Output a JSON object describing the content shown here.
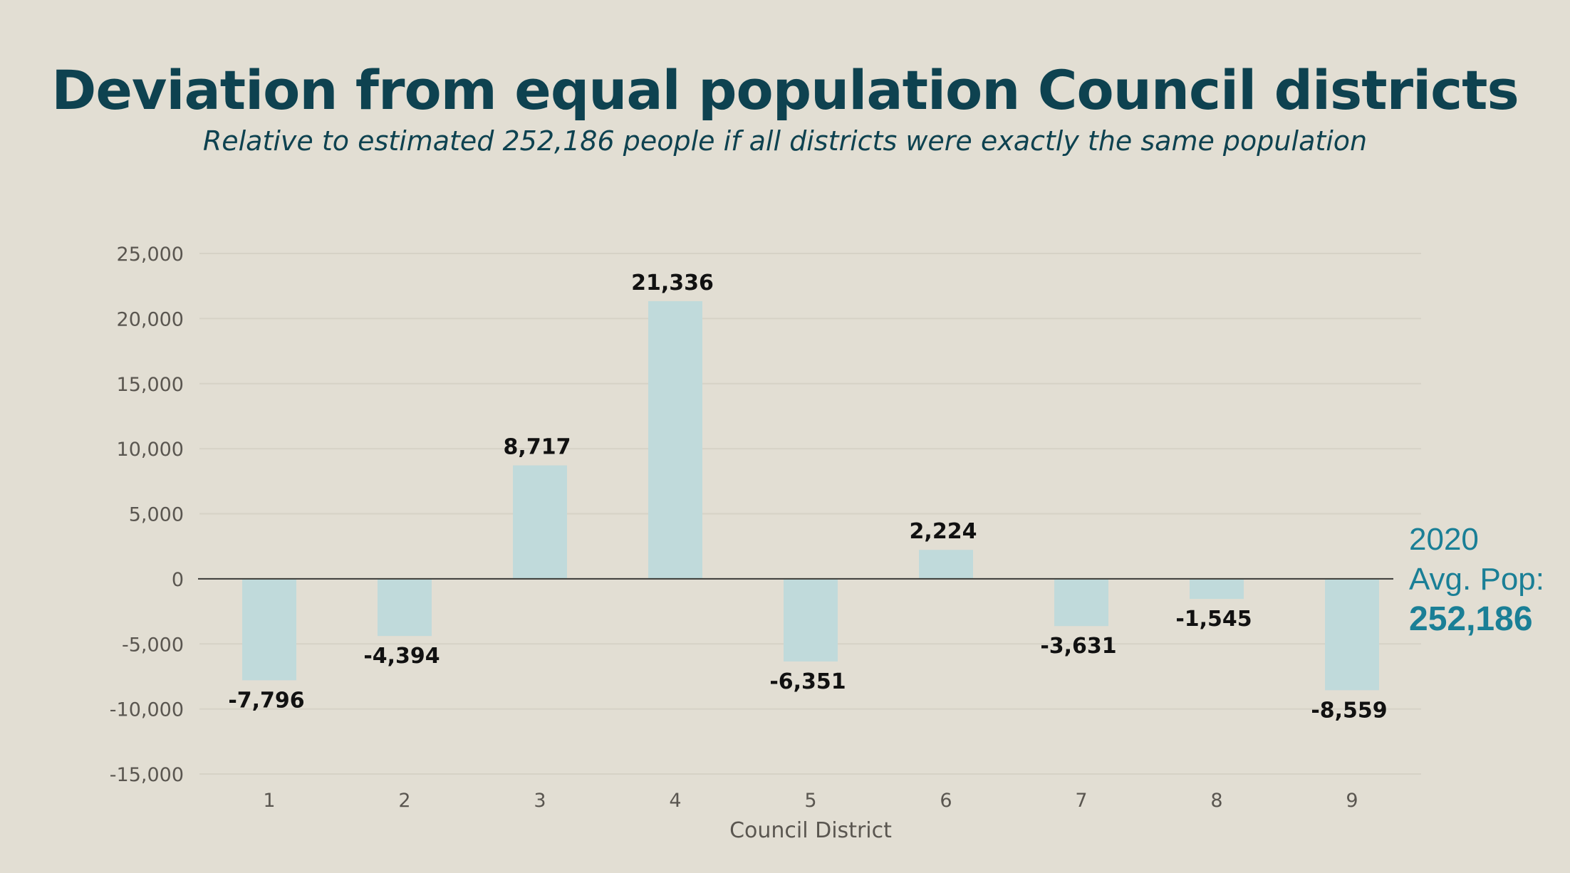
{
  "title": "Deviation from equal population Council districts",
  "subtitle": "Relative to estimated 252,186 people if all districts were exactly the same population",
  "annotation": {
    "line1": "2020",
    "line2": "Avg. Pop:",
    "line3": "252,186"
  },
  "colors": {
    "background": "#e2ded3",
    "bar": "#c0dadb",
    "title": "#0e4250",
    "annotation": "#1a7f96",
    "axis_text": "#5a5650",
    "data_label": "#111111"
  },
  "chart_data": {
    "type": "bar",
    "title": "Deviation from equal population Council districts",
    "subtitle": "Relative to estimated 252,186 people if all districts were exactly the same population",
    "xlabel": "Council District",
    "ylabel": "",
    "categories": [
      "1",
      "2",
      "3",
      "4",
      "5",
      "6",
      "7",
      "8",
      "9"
    ],
    "values": [
      -7796,
      -4394,
      8717,
      21336,
      -6351,
      2224,
      -3631,
      -1545,
      -8559
    ],
    "data_labels": [
      "-7,796",
      "-4,394",
      "8,717",
      "21,336",
      "-6,351",
      "2,224",
      "-3,631",
      "-1,545",
      "-8,559"
    ],
    "ylim": [
      -15000,
      25000
    ],
    "yticks": [
      25000,
      20000,
      15000,
      10000,
      5000,
      0,
      -5000,
      -10000,
      -15000
    ],
    "ytick_labels": [
      "25,000",
      "20,000",
      "15,000",
      "10,000",
      "5,000",
      "0",
      "-5,000",
      "-10,000",
      "-15,000"
    ],
    "grid": true,
    "legend": "none",
    "annotations": [
      "2020 Avg. Pop: 252,186"
    ]
  }
}
